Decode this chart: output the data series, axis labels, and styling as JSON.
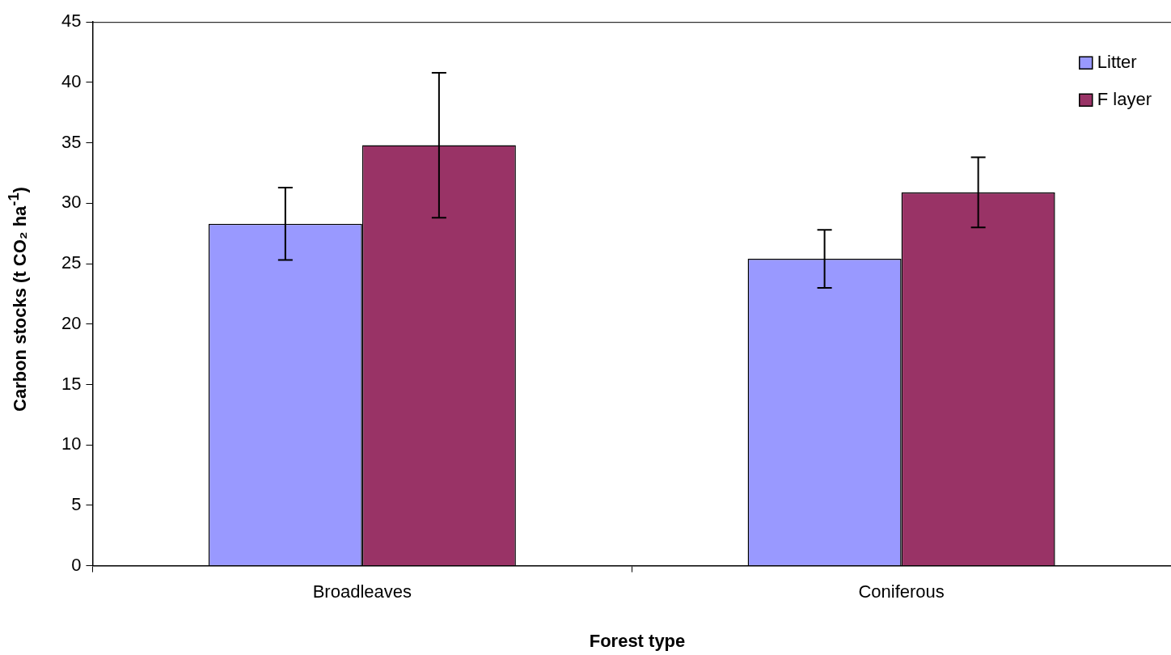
{
  "chart_data": {
    "type": "bar",
    "xlabel": "Forest type",
    "ylabel": "Carbon stocks (t CO₂ ha$^{-1}$)",
    "categories": [
      "Broadleaves",
      "Coniferous"
    ],
    "series": [
      {
        "name": "Litter",
        "color": "#9999ff",
        "values": [
          28.3,
          25.4
        ],
        "errors": [
          3.0,
          2.4
        ]
      },
      {
        "name": "F layer",
        "color": "#993366",
        "values": [
          34.8,
          30.9
        ],
        "errors": [
          6.0,
          2.9
        ]
      }
    ],
    "ylim": [
      0,
      45
    ],
    "yticks": [
      0,
      5,
      10,
      15,
      20,
      25,
      30,
      35,
      40,
      45
    ],
    "grid": false,
    "legend": "top right"
  }
}
